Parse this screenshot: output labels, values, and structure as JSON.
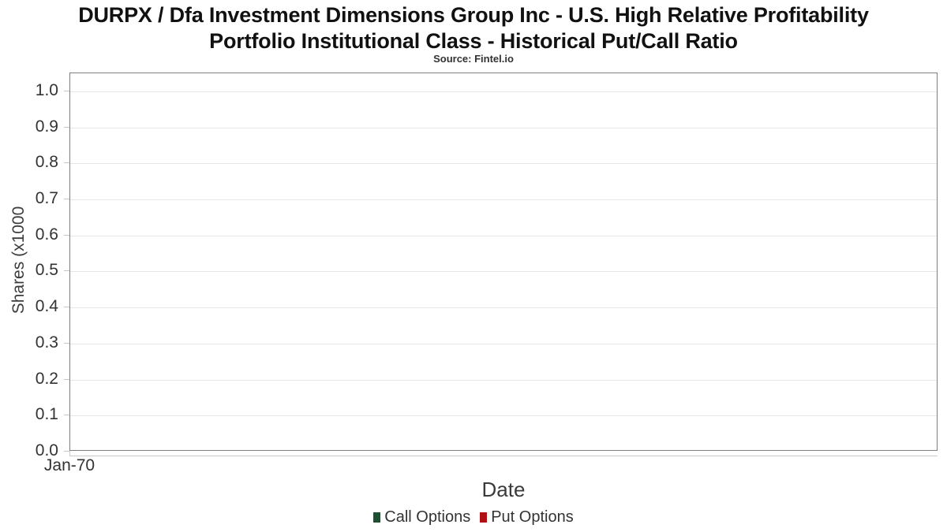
{
  "header": {
    "title_line1": "DURPX / Dfa Investment Dimensions Group Inc - U.S. High Relative Profitability",
    "title_line2": "Portfolio Institutional Class - Historical Put/Call Ratio",
    "subtitle": "Source: Fintel.io"
  },
  "chart_data": {
    "type": "line",
    "title": "DURPX / Dfa Investment Dimensions Group Inc - U.S. High Relative Profitability Portfolio Institutional Class - Historical Put/Call Ratio",
    "subtitle": "Source: Fintel.io",
    "xlabel": "Date",
    "ylabel": "Shares (x1000",
    "x_ticks": [
      "Jan-70"
    ],
    "y_ticks": [
      "0.0",
      "0.1",
      "0.2",
      "0.3",
      "0.4",
      "0.5",
      "0.6",
      "0.7",
      "0.8",
      "0.9",
      "1.0"
    ],
    "ylim": [
      0,
      1.05
    ],
    "grid": "horizontal",
    "legend_position": "bottom-center",
    "plot_border_color": "#7d7d7d",
    "gridline_color": "#e6e6e6",
    "series": [
      {
        "name": "Call Options",
        "color": "#1b5130",
        "values": []
      },
      {
        "name": "Put Options",
        "color": "#b00f14",
        "values": []
      }
    ]
  }
}
